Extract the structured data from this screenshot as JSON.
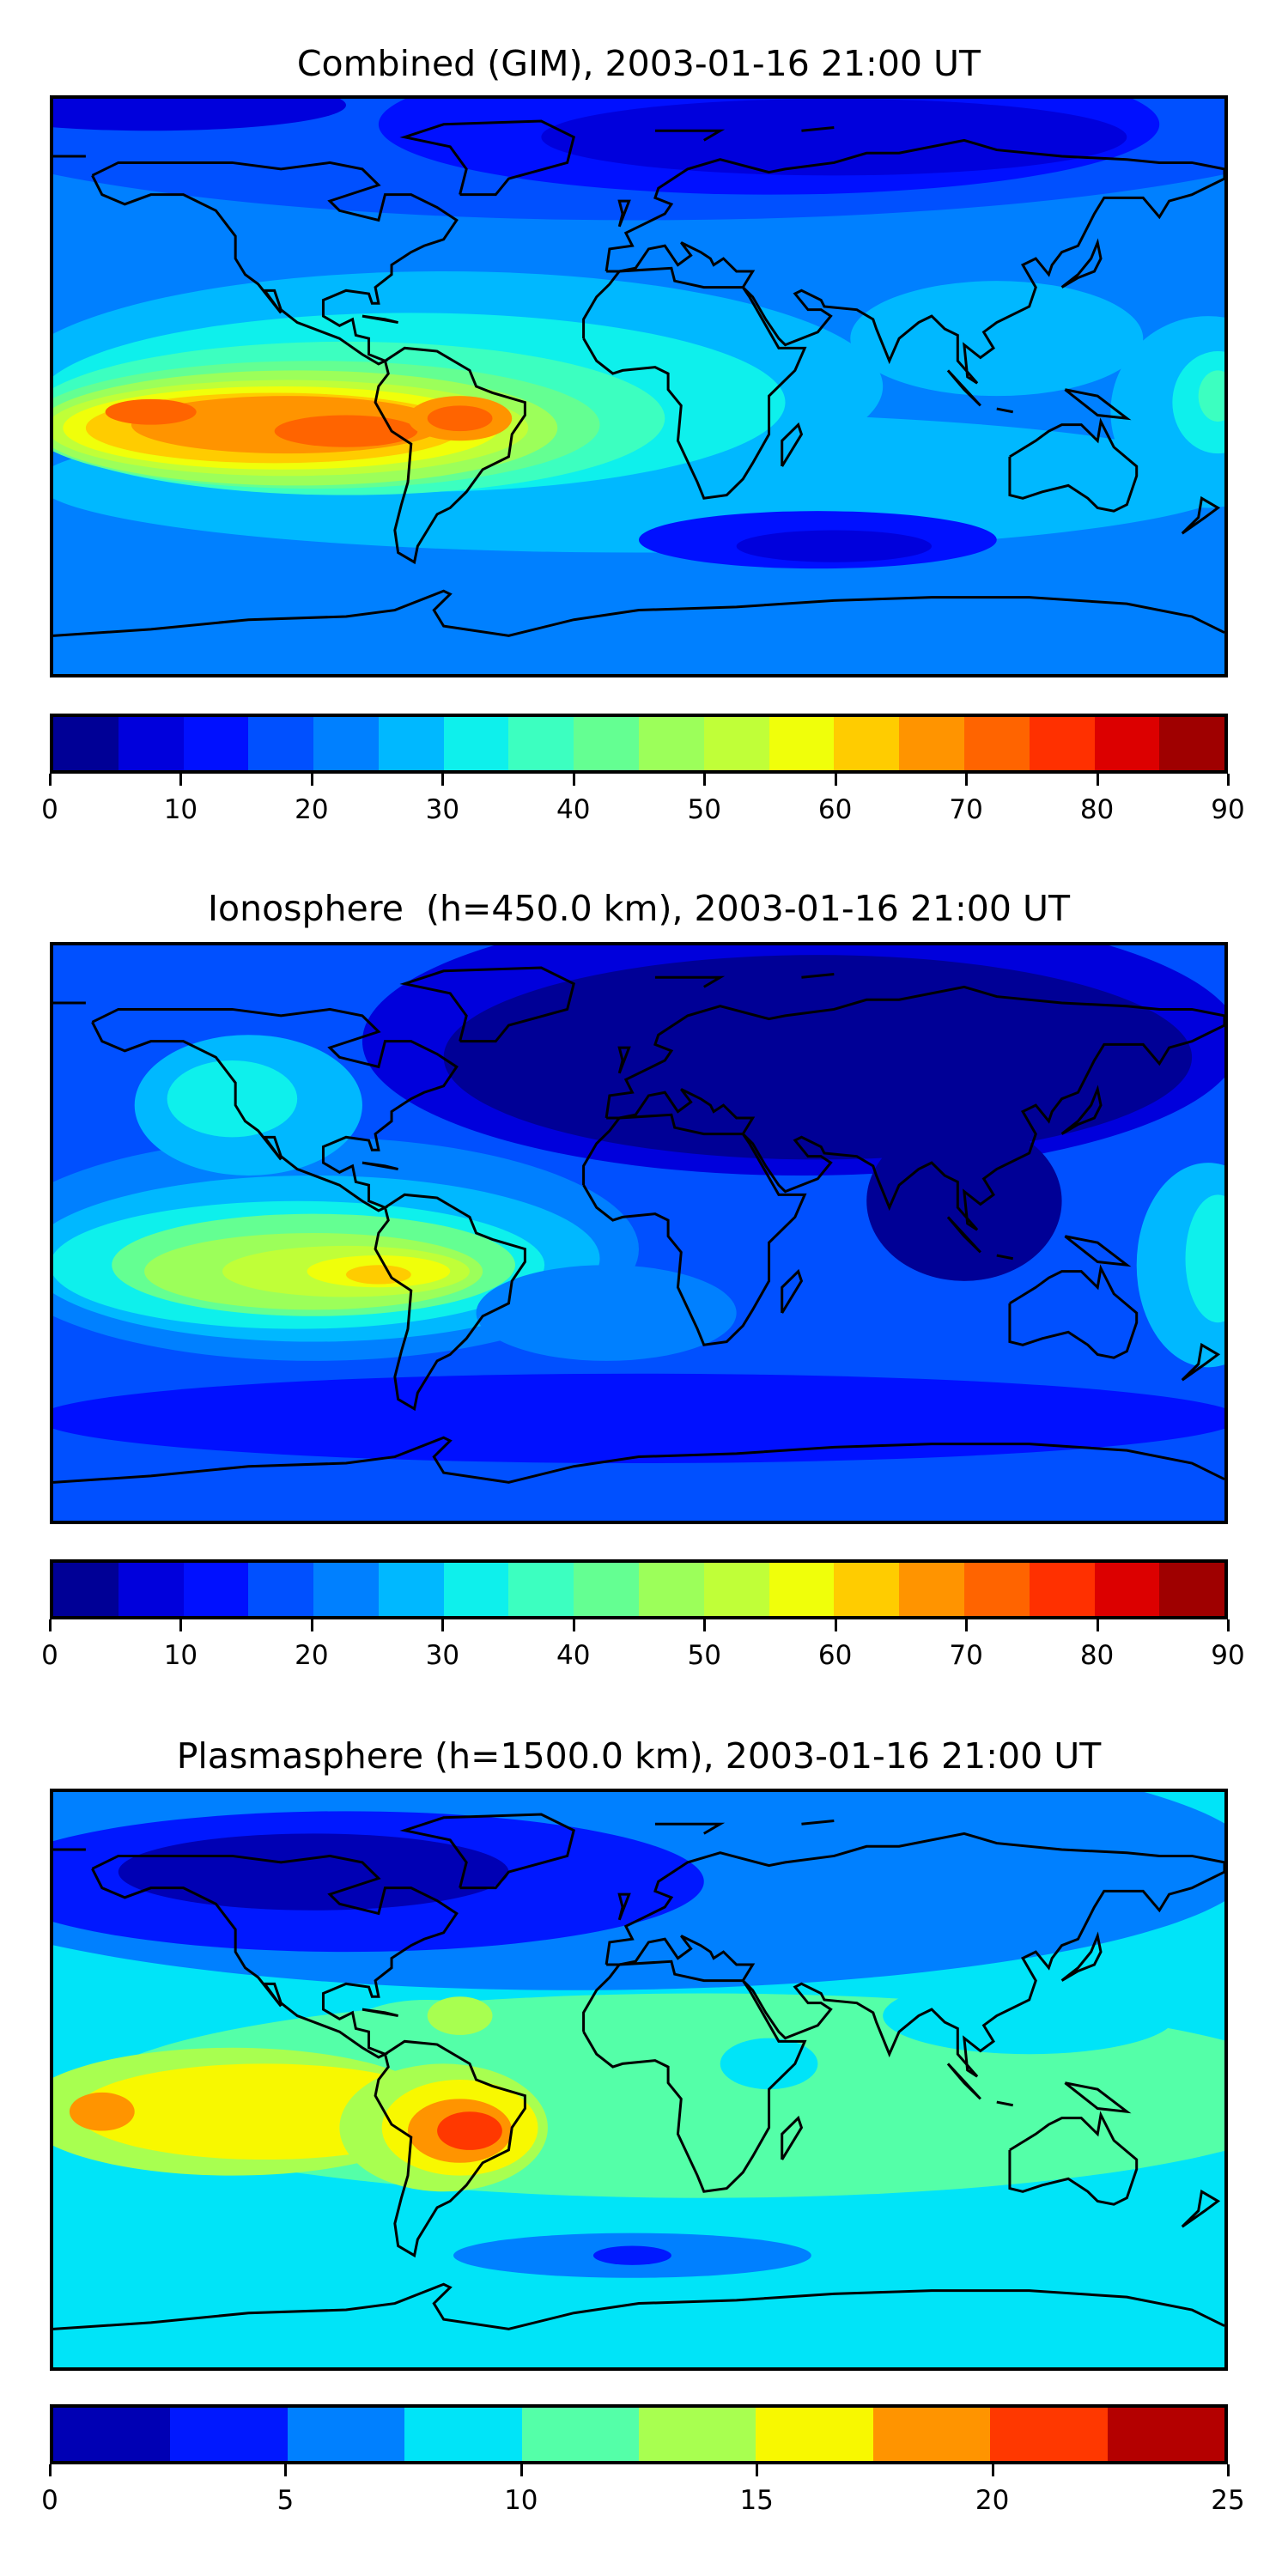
{
  "chart_data": [
    {
      "type": "heatmap",
      "title": "Combined (GIM), 2003-01-16 21:00 UT",
      "colorbar": {
        "levels_min": 0,
        "levels_max": 90,
        "level_step": 5,
        "ticks": [
          0,
          10,
          20,
          30,
          40,
          50,
          60,
          70,
          80,
          90
        ],
        "colors": [
          "#000096",
          "#0000dc",
          "#0010ff",
          "#0050ff",
          "#0080ff",
          "#00b8ff",
          "#0ef0ec",
          "#3cffc0",
          "#64ff92",
          "#9cff5a",
          "#c0ff38",
          "#f0ff0a",
          "#ffcc00",
          "#ff9400",
          "#ff6400",
          "#ff3000",
          "#dc0000",
          "#9f0000"
        ]
      }
    },
    {
      "type": "heatmap",
      "title": "Ionosphere  (h=450.0 km), 2003-01-16 21:00 UT",
      "colorbar": {
        "levels_min": 0,
        "levels_max": 90,
        "level_step": 5,
        "ticks": [
          0,
          10,
          20,
          30,
          40,
          50,
          60,
          70,
          80,
          90
        ],
        "colors": [
          "#000096",
          "#0000dc",
          "#0010ff",
          "#0050ff",
          "#0080ff",
          "#00b8ff",
          "#0ef0ec",
          "#3cffc0",
          "#64ff92",
          "#9cff5a",
          "#c0ff38",
          "#f0ff0a",
          "#ffcc00",
          "#ff9400",
          "#ff6400",
          "#ff3000",
          "#dc0000",
          "#9f0000"
        ]
      }
    },
    {
      "type": "heatmap",
      "title": "Plasmasphere (h=1500.0 km), 2003-01-16 21:00 UT",
      "colorbar": {
        "levels_min": 0,
        "levels_max": 25,
        "level_step": 2.5,
        "ticks": [
          0,
          5,
          10,
          15,
          20,
          25
        ],
        "colors": [
          "#0000b4",
          "#0018ff",
          "#0080ff",
          "#00e4f8",
          "#54ffa8",
          "#a8ff50",
          "#f8f800",
          "#ff9400",
          "#ff3800",
          "#b40000"
        ]
      }
    }
  ]
}
